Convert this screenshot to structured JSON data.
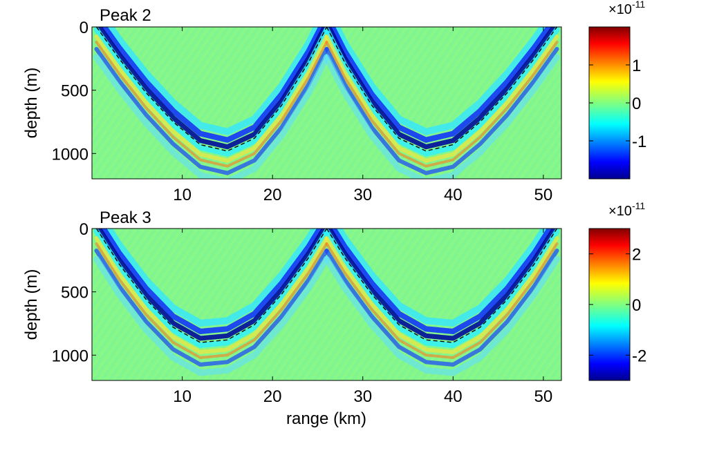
{
  "chart_data": [
    {
      "type": "heatmap",
      "title": "Peak 2",
      "xlabel": "",
      "ylabel": "depth (m)",
      "xlim": [
        0,
        52
      ],
      "ylim": [
        1200,
        0
      ],
      "xticks": [
        10,
        20,
        30,
        40,
        50
      ],
      "yticks": [
        0,
        500,
        1000
      ],
      "colorbar": {
        "multiplier": "×10",
        "exponent": "-11",
        "ticks": [
          1,
          0,
          -1
        ],
        "range": [
          -2,
          2
        ],
        "colormap": "jet"
      },
      "overlay": {
        "style": "dashed",
        "color": "#000000",
        "curves": [
          {
            "x": [
              0.5,
              3,
              6,
              9,
              12,
              15,
              18,
              21,
              24,
              26
            ],
            "y": [
              0,
              250,
              520,
              750,
              930,
              980,
              880,
              620,
              280,
              0
            ]
          },
          {
            "x": [
              26,
              28,
              31,
              34,
              37,
              40,
              43,
              46,
              49,
              51.5
            ],
            "y": [
              0,
              280,
              620,
              880,
              980,
              930,
              750,
              520,
              250,
              0
            ]
          }
        ]
      }
    },
    {
      "type": "heatmap",
      "title": "Peak 3",
      "xlabel": "range (km)",
      "ylabel": "depth (m)",
      "xlim": [
        0,
        52
      ],
      "ylim": [
        1200,
        0
      ],
      "xticks": [
        10,
        20,
        30,
        40,
        50
      ],
      "yticks": [
        0,
        500,
        1000
      ],
      "colorbar": {
        "multiplier": "×10",
        "exponent": "-11",
        "ticks": [
          2,
          0,
          -2
        ],
        "range": [
          -3,
          3
        ],
        "colormap": "jet"
      },
      "overlay": {
        "style": "dashed",
        "color": "#000000",
        "curves": [
          {
            "x": [
              0.5,
              3,
              6,
              9,
              12,
              15,
              18,
              21,
              24,
              26
            ],
            "y": [
              0,
              280,
              560,
              780,
              900,
              880,
              760,
              520,
              230,
              0
            ]
          },
          {
            "x": [
              26,
              28,
              31,
              34,
              37,
              40,
              43,
              46,
              49,
              51.5
            ],
            "y": [
              0,
              230,
              520,
              760,
              880,
              900,
              780,
              560,
              280,
              0
            ]
          }
        ]
      }
    }
  ]
}
